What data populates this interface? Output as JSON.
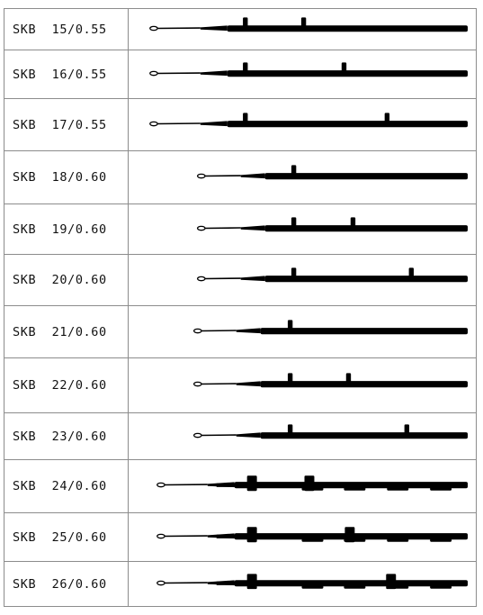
{
  "rows": [
    {
      "label": "SKB  15/0.55",
      "design": "a",
      "butt_count": 2
    },
    {
      "label": "SKB  16/0.55",
      "design": "a",
      "butt_count": 2
    },
    {
      "label": "SKB  17/0.55",
      "design": "a",
      "butt_count": 2
    },
    {
      "label": "SKB  18/0.60",
      "design": "b",
      "butt_count": 1
    },
    {
      "label": "SKB  19/0.60",
      "design": "b",
      "butt_count": 2
    },
    {
      "label": "SKB  20/0.60",
      "design": "b",
      "butt_count": 2
    },
    {
      "label": "SKB  21/0.60",
      "design": "c",
      "butt_count": 1
    },
    {
      "label": "SKB  22/0.60",
      "design": "c",
      "butt_count": 2
    },
    {
      "label": "SKB  23/0.60",
      "design": "c",
      "butt_count": 2
    },
    {
      "label": "SKB  24/0.60",
      "design": "d",
      "butt_count": 2
    },
    {
      "label": "SKB  25/0.60",
      "design": "d",
      "butt_count": 2
    },
    {
      "label": "SKB  26/0.60",
      "design": "d",
      "butt_count": 2
    }
  ],
  "colors": {
    "needle": "#000000",
    "grid": "#8c8c8c",
    "text": "#111111"
  }
}
